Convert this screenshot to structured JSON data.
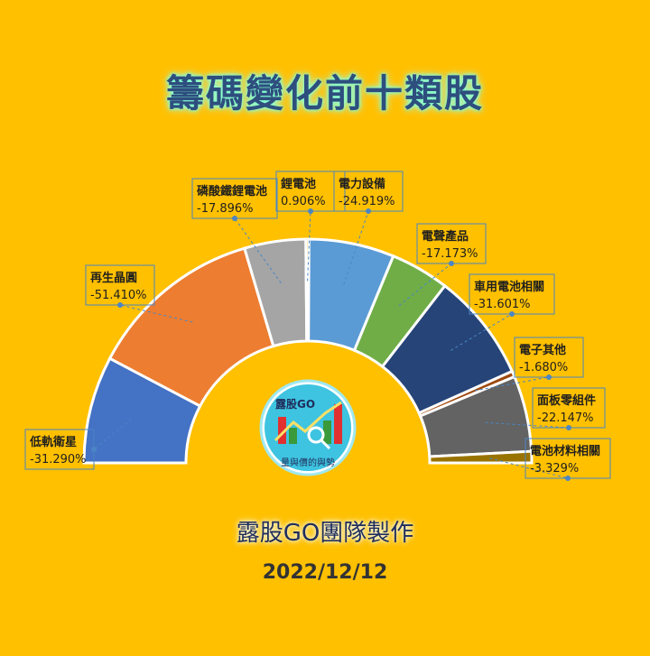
{
  "title": "籌碼變化前十類股",
  "credit": "露股GO團隊製作",
  "date": "2022/12/12",
  "logo": {
    "top_text": "露股GO",
    "bottom_text": "量與價的與勢"
  },
  "chart_data": {
    "type": "pie",
    "variant": "half-donut",
    "title": "籌碼變化前十類股",
    "slices": [
      {
        "name": "低軌衛星",
        "label": "-31.290%",
        "value": 31.29,
        "color": "#4472C4"
      },
      {
        "name": "再生晶圓",
        "label": "-51.410%",
        "value": 51.41,
        "color": "#ED7D31"
      },
      {
        "name": "磷酸鐵鋰電池",
        "label": "-17.896%",
        "value": 17.896,
        "color": "#A5A5A5"
      },
      {
        "name": "鋰電池",
        "label": "0.906%",
        "value": 0.906,
        "color": "#FFC000"
      },
      {
        "name": "電力設備",
        "label": "-24.919%",
        "value": 24.919,
        "color": "#5B9BD5"
      },
      {
        "name": "電聲產品",
        "label": "-17.173%",
        "value": 17.173,
        "color": "#70AD47"
      },
      {
        "name": "車用電池相關",
        "label": "-31.601%",
        "value": 31.601,
        "color": "#264478"
      },
      {
        "name": "電子其他",
        "label": "-1.680%",
        "value": 1.68,
        "color": "#9E480E"
      },
      {
        "name": "面板零組件",
        "label": "-22.147%",
        "value": 22.147,
        "color": "#636363"
      },
      {
        "name": "電池材料相關",
        "label": "-3.329%",
        "value": 3.329,
        "color": "#997300"
      }
    ]
  }
}
